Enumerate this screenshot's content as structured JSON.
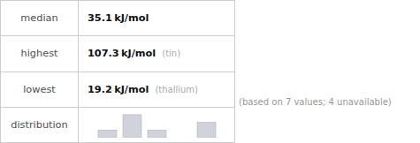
{
  "chart_data": {
    "type": "bar",
    "categories": [
      null,
      null,
      null,
      null,
      null
    ],
    "values": [
      1,
      3,
      1,
      0,
      2
    ],
    "color": "#d0d3db",
    "ylim": [
      0,
      3.45
    ],
    "tick_labels": false,
    "grid": false,
    "annotations": [
      {
        "label": "median",
        "value": "35.1 kJ/mol"
      },
      {
        "label": "highest",
        "value": "107.3 kJ/mol",
        "note": "(tin)"
      },
      {
        "label": "lowest",
        "value": "19.2 kJ/mol",
        "note": "(thallium)"
      },
      {
        "label": "distribution"
      },
      {
        "text": "(based on 7 values; 4 unavailable)"
      }
    ]
  }
}
